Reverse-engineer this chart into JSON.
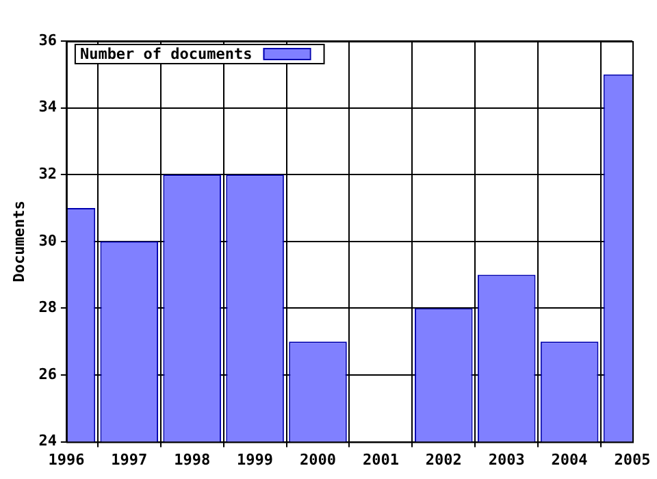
{
  "chart_data": {
    "type": "bar",
    "ylabel": "Documents",
    "categories": [
      "1996",
      "1997",
      "1998",
      "1999",
      "2000",
      "2001",
      "2002",
      "2003",
      "2004",
      "2005"
    ],
    "series": [
      {
        "name": "Number of documents",
        "color": "#8080ff",
        "values": [
          31,
          30,
          32,
          32,
          27,
          null,
          28,
          29,
          27,
          35
        ]
      }
    ],
    "ylim": [
      24,
      36
    ],
    "yticks": [
      24,
      26,
      28,
      30,
      32,
      34,
      36
    ],
    "grid": true,
    "legend": "top left"
  }
}
